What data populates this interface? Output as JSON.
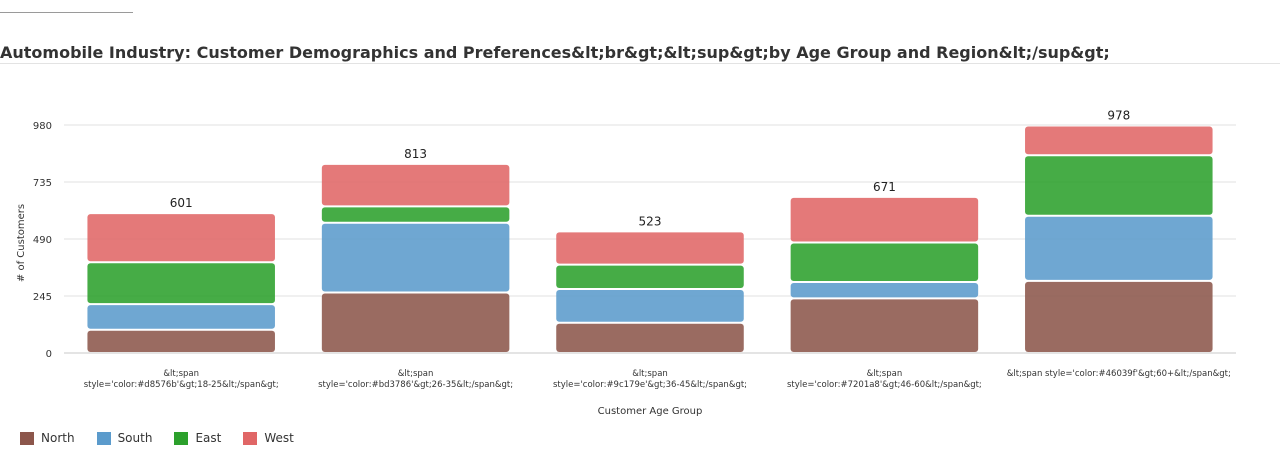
{
  "title": "Automobile Industry: Customer Demographics and Preferences&lt;br&gt;&lt;sup&gt;by Age Group and Region&lt;/sup&gt;",
  "chart_data": {
    "type": "bar",
    "stacked": true,
    "xlabel": "Customer Age Group",
    "ylabel": "# of Customers",
    "categories": [
      "&lt;span style='color:#d8576b'&gt;18-25&lt;/span&gt;",
      "&lt;span style='color:#bd3786'&gt;26-35&lt;/span&gt;",
      "&lt;span style='color:#9c179e'&gt;36-45&lt;/span&gt;",
      "&lt;span style='color:#7201a8'&gt;46-60&lt;/span&gt;",
      "&lt;span style='color:#46039f'&gt;60+&lt;/span&gt;"
    ],
    "series": [
      {
        "name": "North",
        "color": "#8c564b",
        "values": [
          100,
          260,
          130,
          235,
          310
        ]
      },
      {
        "name": "South",
        "color": "#5b9bcc",
        "values": [
          110,
          300,
          145,
          70,
          280
        ]
      },
      {
        "name": "East",
        "color": "#2ca02c",
        "values": [
          180,
          70,
          105,
          170,
          260
        ]
      },
      {
        "name": "West",
        "color": "#e06666",
        "values": [
          211,
          183,
          143,
          196,
          128
        ]
      }
    ],
    "totals": [
      601,
      813,
      523,
      671,
      978
    ],
    "yticks": [
      0,
      245,
      490,
      735,
      980
    ],
    "ylim": [
      0,
      980
    ],
    "grid": true,
    "legend_position": "bottom-left"
  }
}
